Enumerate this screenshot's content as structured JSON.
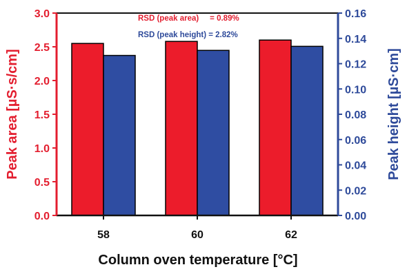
{
  "chart_data": {
    "type": "bar",
    "categories": [
      "58",
      "60",
      "62"
    ],
    "series": [
      {
        "name": "Peak area",
        "axis": "left",
        "color": "#ec1c2b",
        "values": [
          2.55,
          2.58,
          2.6
        ]
      },
      {
        "name": "Peak height",
        "axis": "right",
        "color": "#2f4da2",
        "values": [
          0.1265,
          0.1305,
          0.1337
        ]
      }
    ],
    "xlabel": "Column oven temperature [°C]",
    "ylabel_left": "Peak area [µS·s/cm]",
    "ylabel_right": "Peak height [µS·cm]",
    "ylim_left": [
      0,
      3.0
    ],
    "ylim_right": [
      0,
      0.16
    ],
    "yticks_left": [
      "0.0",
      "0.5",
      "1.0",
      "1.5",
      "2.0",
      "2.5",
      "3.0"
    ],
    "yticks_right": [
      "0.00",
      "0.02",
      "0.04",
      "0.06",
      "0.08",
      "0.10",
      "0.12",
      "0.14",
      "0.16"
    ],
    "annotations": [
      {
        "text": "RSD (peak area)     = 0.89%",
        "color": "#e31e2f"
      },
      {
        "text": "RSD (peak height) = 2.82%",
        "color": "#2e4a9a"
      }
    ],
    "grid": false,
    "axis_colors": {
      "left": "#e31e2f",
      "right": "#2e4a9a",
      "bottom": "#111111"
    }
  }
}
